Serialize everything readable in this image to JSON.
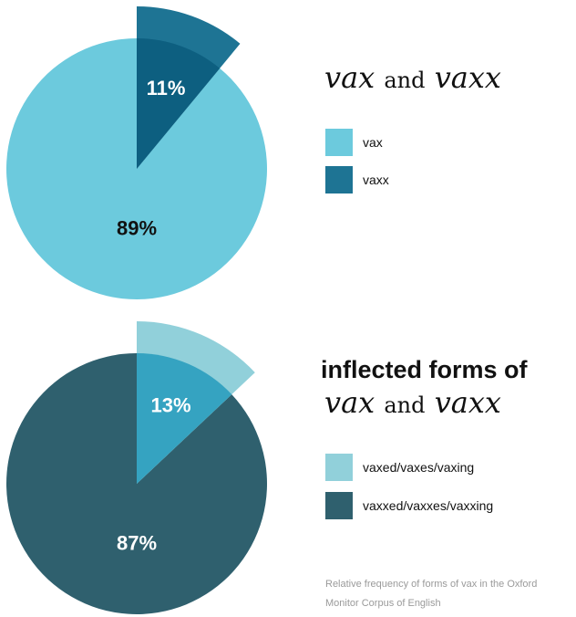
{
  "chart_data": [
    {
      "type": "pie",
      "title_parts": {
        "word1": "vax",
        "conj": "and",
        "word2": "vaxx"
      },
      "series": [
        {
          "name": "vax",
          "value": 89,
          "label": "89%",
          "color": "#6ccadd",
          "label_color": "#111111"
        },
        {
          "name": "vaxx",
          "value": 11,
          "label": "11%",
          "color": "#1e7494",
          "overlap_color": "#0d5f80",
          "label_color": "#ffffff",
          "exploded": true
        }
      ]
    },
    {
      "type": "pie",
      "title_parts": {
        "line1": "inflected forms of",
        "word1": "vax",
        "conj": "and",
        "word2": "vaxx"
      },
      "series": [
        {
          "name": "vaxxed/vaxxes/vaxxing",
          "value": 87,
          "label": "87%",
          "color": "#2f606e",
          "label_color": "#ffffff"
        },
        {
          "name": "vaxed/vaxes/vaxing",
          "value": 13,
          "label": "13%",
          "color": "#91d0da",
          "overlap_color": "#35a3c1",
          "label_color": "#ffffff",
          "exploded": true
        }
      ]
    }
  ],
  "legend1": [
    {
      "label": "vax",
      "color": "#6ccadd"
    },
    {
      "label": "vaxx",
      "color": "#1e7494"
    }
  ],
  "legend2": [
    {
      "label": "vaxed/vaxes/vaxing",
      "color": "#91d0da"
    },
    {
      "label": "vaxxed/vaxxes/vaxxing",
      "color": "#2f606e"
    }
  ],
  "caption": "Relative frequency of forms of vax in the Oxford Monitor Corpus of English"
}
